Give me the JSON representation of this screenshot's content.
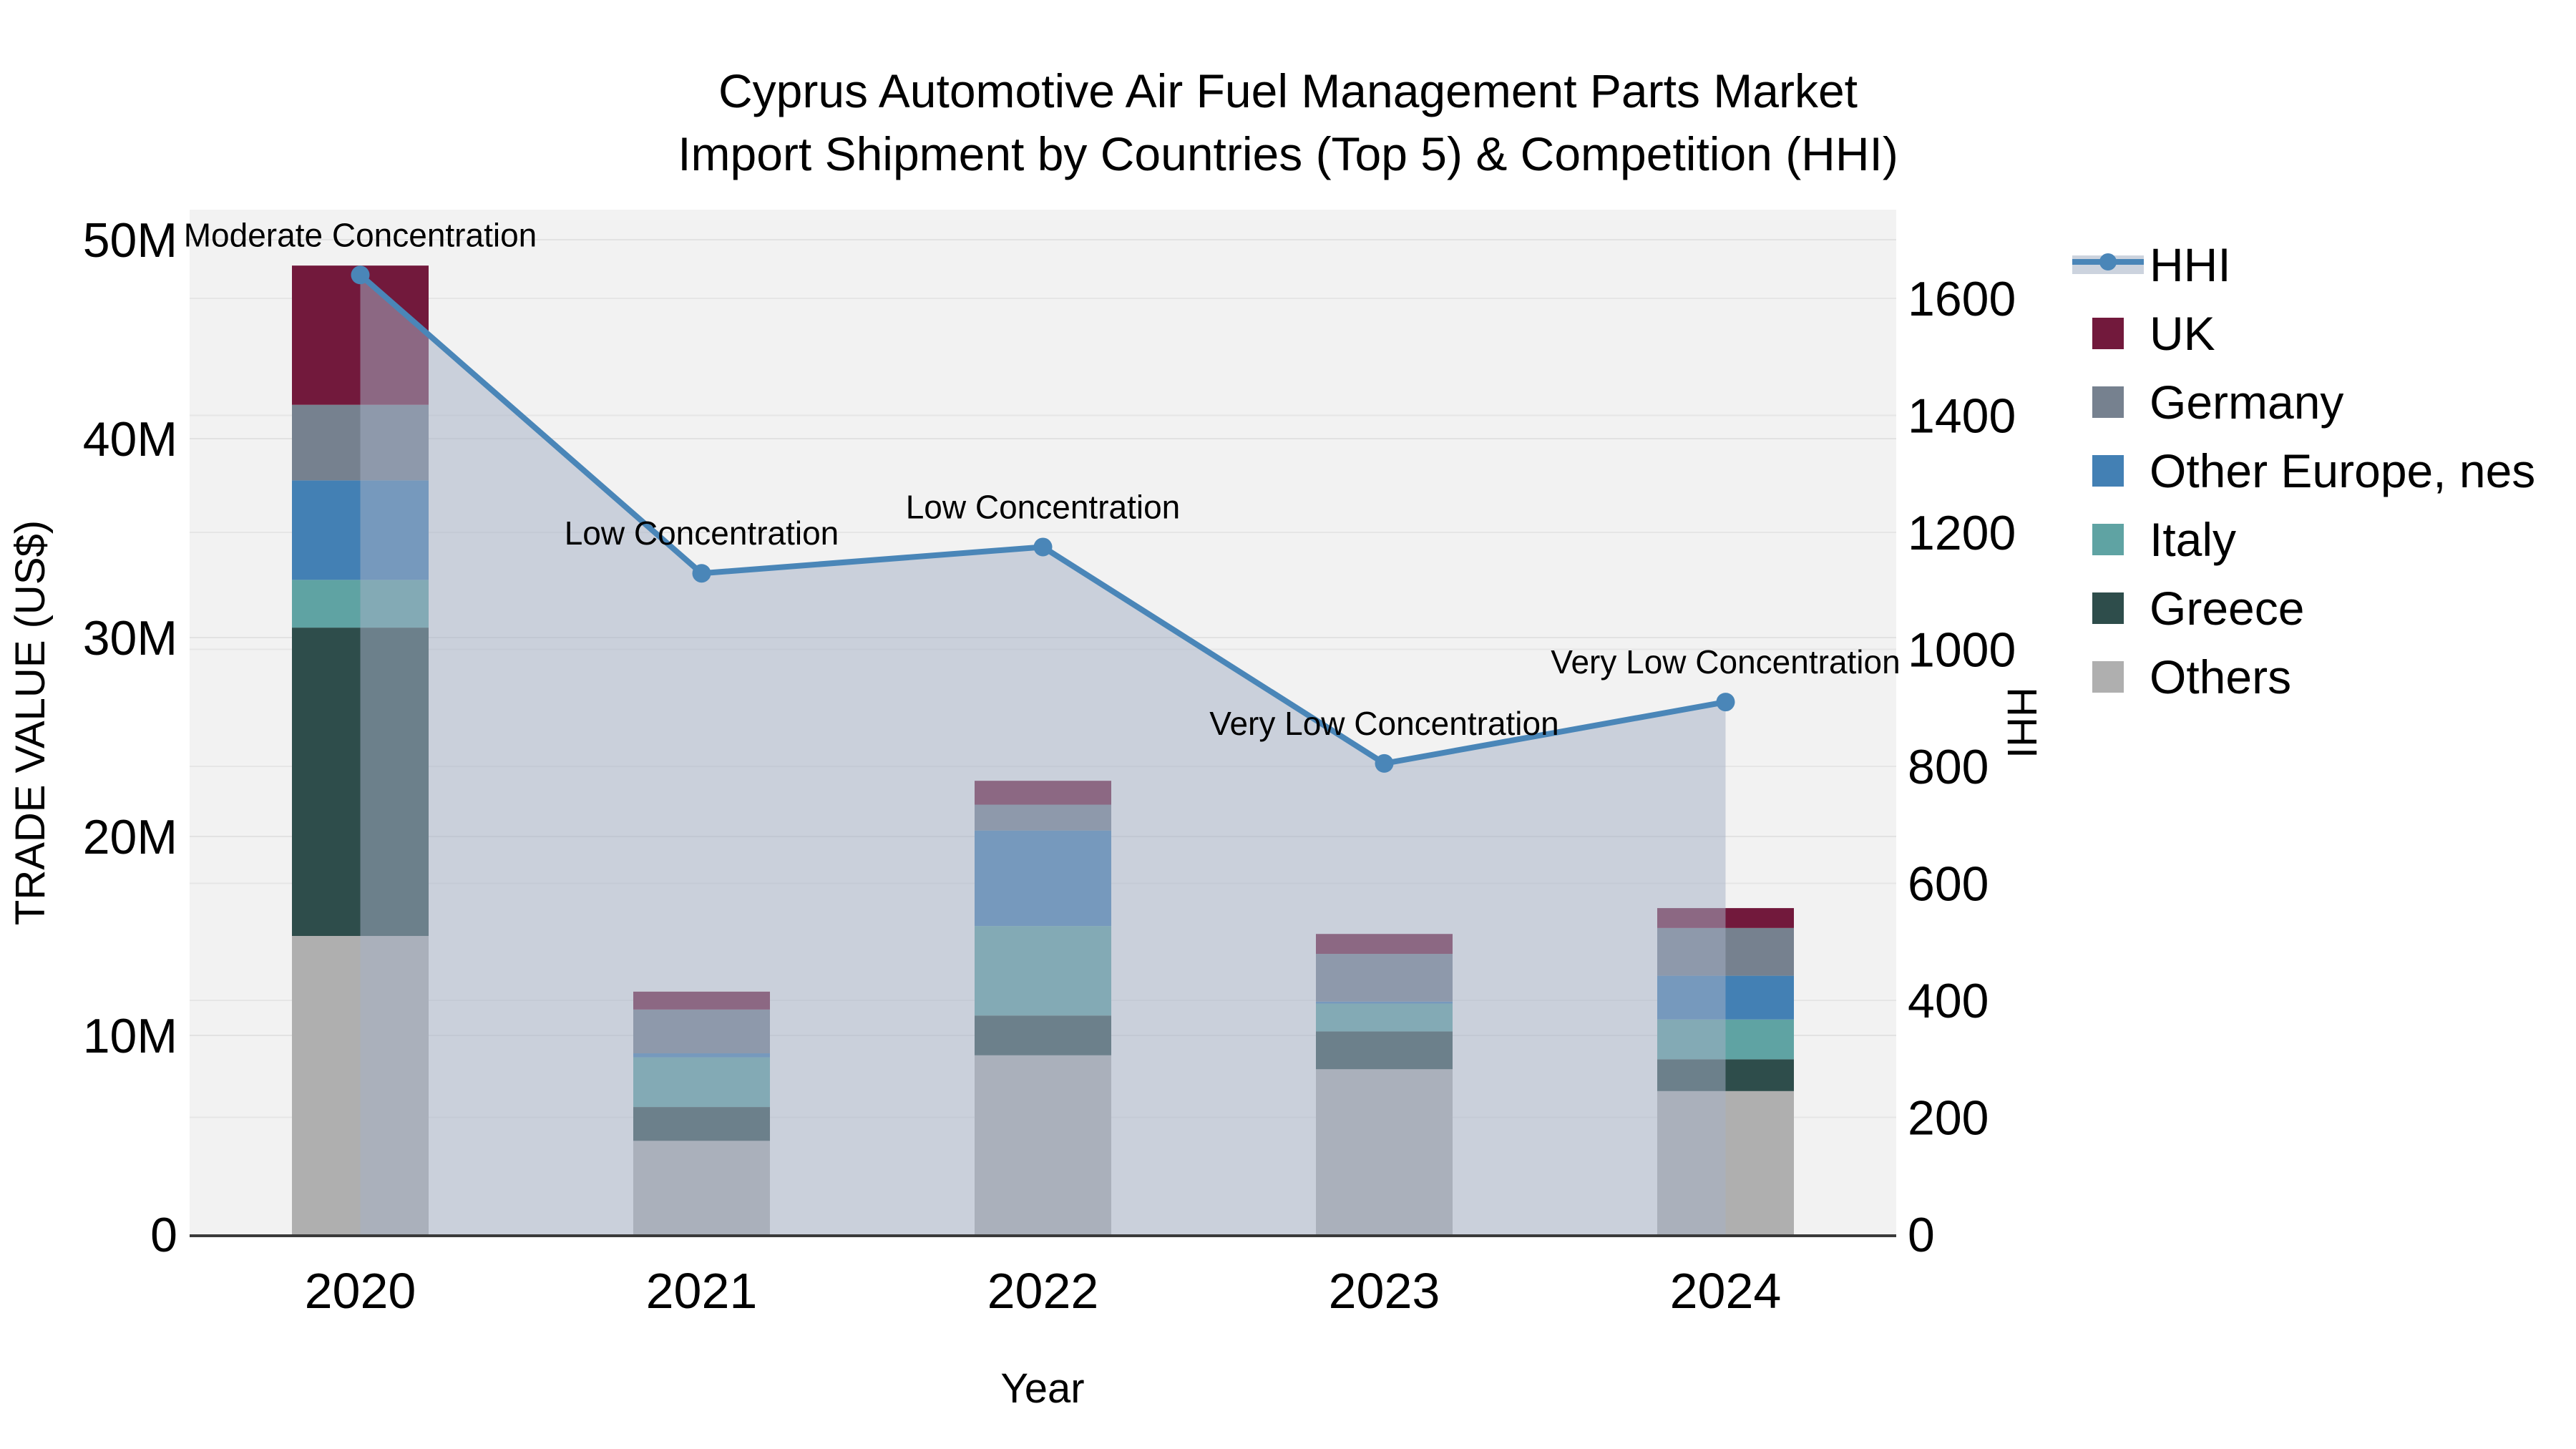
{
  "title": {
    "line1": "Cyprus Automotive Air Fuel Management Parts Market",
    "line2": "Import Shipment by Countries (Top 5) & Competition (HHI)"
  },
  "axes": {
    "x_label": "Year",
    "y_left_label": "TRADE VALUE (US$)",
    "y_right_label": "HHI",
    "y_left_ticks": [
      {
        "label": "0",
        "value": 0
      },
      {
        "label": "10M",
        "value": 10
      },
      {
        "label": "20M",
        "value": 20
      },
      {
        "label": "30M",
        "value": 30
      },
      {
        "label": "40M",
        "value": 40
      },
      {
        "label": "50M",
        "value": 50
      }
    ],
    "y_right_ticks": [
      {
        "label": "0",
        "value": 0
      },
      {
        "label": "200",
        "value": 200
      },
      {
        "label": "400",
        "value": 400
      },
      {
        "label": "600",
        "value": 600
      },
      {
        "label": "800",
        "value": 800
      },
      {
        "label": "1000",
        "value": 1000
      },
      {
        "label": "1200",
        "value": 1200
      },
      {
        "label": "1400",
        "value": 1400
      },
      {
        "label": "1600",
        "value": 1600
      }
    ]
  },
  "legend": {
    "items": [
      {
        "label": "HHI",
        "type": "line",
        "color": "#4A86B8",
        "band_color": "#CCD3DE"
      },
      {
        "label": "UK",
        "type": "swatch",
        "color": "#72193C"
      },
      {
        "label": "Germany",
        "type": "swatch",
        "color": "#76818F"
      },
      {
        "label": "Other Europe, nes",
        "type": "swatch",
        "color": "#4380B4"
      },
      {
        "label": "Italy",
        "type": "swatch",
        "color": "#5FA3A3"
      },
      {
        "label": "Greece",
        "type": "swatch",
        "color": "#2E4D4B"
      },
      {
        "label": "Others",
        "type": "swatch",
        "color": "#AFAFAF"
      }
    ]
  },
  "chart_data": {
    "type": "combo-stacked-bar-with-line",
    "categories": [
      "2020",
      "2021",
      "2022",
      "2023",
      "2024"
    ],
    "values_unit": "million US$",
    "bar_series": [
      {
        "name": "Others",
        "color": "#AFAFAF",
        "values": [
          15.0,
          4.7,
          9.0,
          8.3,
          7.2
        ]
      },
      {
        "name": "Greece",
        "color": "#2E4D4B",
        "values": [
          15.5,
          1.7,
          2.0,
          1.9,
          1.6
        ]
      },
      {
        "name": "Italy",
        "color": "#5FA3A3",
        "values": [
          2.4,
          2.5,
          4.5,
          1.4,
          2.0
        ]
      },
      {
        "name": "Other Europe, nes",
        "color": "#4380B4",
        "values": [
          5.0,
          0.2,
          4.8,
          0.1,
          2.2
        ]
      },
      {
        "name": "Germany",
        "color": "#76818F",
        "values": [
          3.8,
          2.2,
          1.3,
          2.4,
          2.4
        ]
      },
      {
        "name": "UK",
        "color": "#72193C",
        "values": [
          7.0,
          0.9,
          1.2,
          1.0,
          1.0
        ]
      }
    ],
    "bar_totals": [
      48.7,
      12.2,
      22.8,
      15.1,
      16.4
    ],
    "line_series": {
      "name": "HHI",
      "axis": "right",
      "color": "#4A86B8",
      "area_fill": "#A5B1C5",
      "area_opacity": 0.52,
      "values": [
        1640,
        1130,
        1175,
        805,
        910
      ]
    },
    "annotations": [
      "Moderate Concentration",
      "Low Concentration",
      "Low Concentration",
      "Very Low Concentration",
      "Very Low Concentration"
    ],
    "ylim_left_millions": [
      0,
      51.5
    ],
    "ylim_right": [
      0,
      1755
    ],
    "grid": true,
    "legend_position": "right"
  }
}
